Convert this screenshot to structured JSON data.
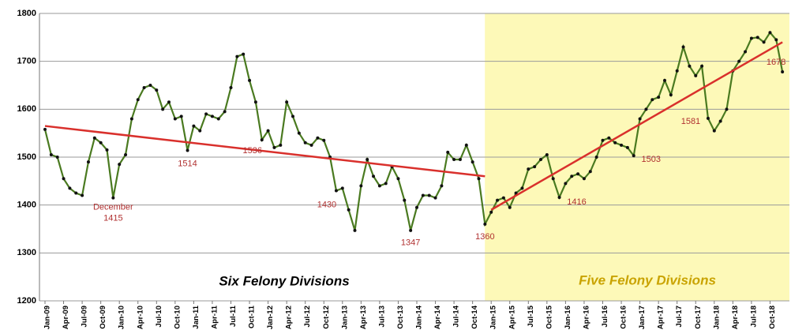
{
  "chart_data": {
    "type": "line",
    "categories": [
      "Jan-09",
      null,
      null,
      "Apr-09",
      null,
      null,
      "Jul-09",
      null,
      null,
      "Oct-09",
      null,
      null,
      "Jan-10",
      null,
      null,
      "Apr-10",
      null,
      null,
      "Jul-10",
      null,
      null,
      "Oct-10",
      null,
      null,
      "Jan-11",
      null,
      null,
      "Apr-11",
      null,
      null,
      "Jul-11",
      null,
      null,
      "Oct-11",
      null,
      null,
      "Jan-12",
      null,
      null,
      "Apr-12",
      null,
      null,
      "Jul-12",
      null,
      null,
      "Oct-12",
      null,
      null,
      "Jan-13",
      null,
      null,
      "Apr-13",
      null,
      null,
      "Jul-13",
      null,
      null,
      "Oct-13",
      null,
      null,
      "Jan-14",
      null,
      null,
      "Apr-14",
      null,
      null,
      "Jul-14",
      null,
      null,
      "Oct-14",
      null,
      null,
      "Jan-15",
      null,
      null,
      "Apr-15",
      null,
      null,
      "Jul-15",
      null,
      null,
      "Oct-15",
      null,
      null,
      "Jan-16",
      null,
      null,
      "Apr-16",
      null,
      null,
      "Jul-16",
      null,
      null,
      "Oct-16",
      null,
      null,
      "Jan-17",
      null,
      null,
      "Apr-17",
      null,
      null,
      "Jul-17",
      null,
      null,
      "Oct-17",
      null,
      null,
      "Jan-18",
      null,
      null,
      "Apr-18",
      null,
      null,
      "Jul-18",
      null,
      null,
      "Oct-18",
      null,
      null
    ],
    "series": [
      {
        "color": "#4a7a20",
        "values": [
          1558,
          1505,
          1500,
          1455,
          1435,
          1425,
          1420,
          1490,
          1540,
          1530,
          1515,
          1415,
          1485,
          1505,
          1580,
          1620,
          1645,
          1650,
          1640,
          1600,
          1615,
          1580,
          1585,
          1514,
          1565,
          1555,
          1590,
          1585,
          1580,
          1595,
          1645,
          1710,
          1715,
          1660,
          1615,
          1536,
          1555,
          1520,
          1525,
          1615,
          1585,
          1550,
          1530,
          1525,
          1540,
          1535,
          1500,
          1430,
          1435,
          1390,
          1347,
          1440,
          1495,
          1460,
          1440,
          1445,
          1480,
          1455,
          1410,
          1347,
          1395,
          1420,
          1420,
          1415,
          1440,
          1510,
          1495,
          1495,
          1525,
          1490,
          1455,
          1360,
          1385,
          1410,
          1415,
          1395,
          1425,
          1435,
          1475,
          1480,
          1495,
          1505,
          1455,
          1416,
          1445,
          1460,
          1465,
          1455,
          1470,
          1500,
          1535,
          1540,
          1530,
          1525,
          1520,
          1503,
          1580,
          1600,
          1620,
          1625,
          1660,
          1630,
          1680,
          1730,
          1690,
          1670,
          1690,
          1581,
          1555,
          1575,
          1600,
          1680,
          1700,
          1720,
          1748,
          1750,
          1740,
          1760,
          1745,
          1678
        ],
        "value_labels": [
          null,
          null,
          null,
          null,
          null,
          null,
          null,
          null,
          null,
          null,
          null,
          "1415",
          null,
          null,
          null,
          null,
          null,
          null,
          null,
          null,
          null,
          null,
          null,
          "1514",
          null,
          null,
          null,
          null,
          null,
          null,
          null,
          null,
          null,
          null,
          null,
          "1536",
          null,
          null,
          null,
          null,
          null,
          null,
          null,
          null,
          null,
          null,
          null,
          "1430",
          null,
          null,
          null,
          null,
          null,
          null,
          null,
          null,
          null,
          null,
          null,
          "1347",
          null,
          null,
          null,
          null,
          null,
          null,
          null,
          null,
          null,
          null,
          null,
          "1360",
          null,
          null,
          null,
          null,
          null,
          null,
          null,
          null,
          null,
          null,
          null,
          "1416",
          null,
          null,
          null,
          null,
          null,
          null,
          null,
          null,
          null,
          null,
          null,
          "1503",
          null,
          null,
          null,
          null,
          null,
          null,
          null,
          null,
          null,
          null,
          null,
          "1581",
          null,
          null,
          null,
          null,
          null,
          null,
          null,
          null,
          null,
          null,
          null,
          "1678"
        ]
      }
    ],
    "annotations": [
      {
        "text": "December"
      }
    ],
    "trend_lines": [
      {
        "color": "#d9302c",
        "x": [
          0,
          71
        ],
        "values": [
          1565,
          1460
        ]
      },
      {
        "color": "#d9302c",
        "x": [
          72,
          119
        ],
        "values": [
          1390,
          1740
        ]
      }
    ],
    "regions": [
      {
        "label": "Six Felony Divisions"
      },
      {
        "label": "Five Felony Divisions",
        "color": "#fdf9b8",
        "x": [
          72,
          119
        ]
      }
    ],
    "ylim": [
      1200,
      1800
    ],
    "yticks": [
      1200,
      1300,
      1400,
      1500,
      1600,
      1700,
      1800
    ],
    "grid": true
  }
}
